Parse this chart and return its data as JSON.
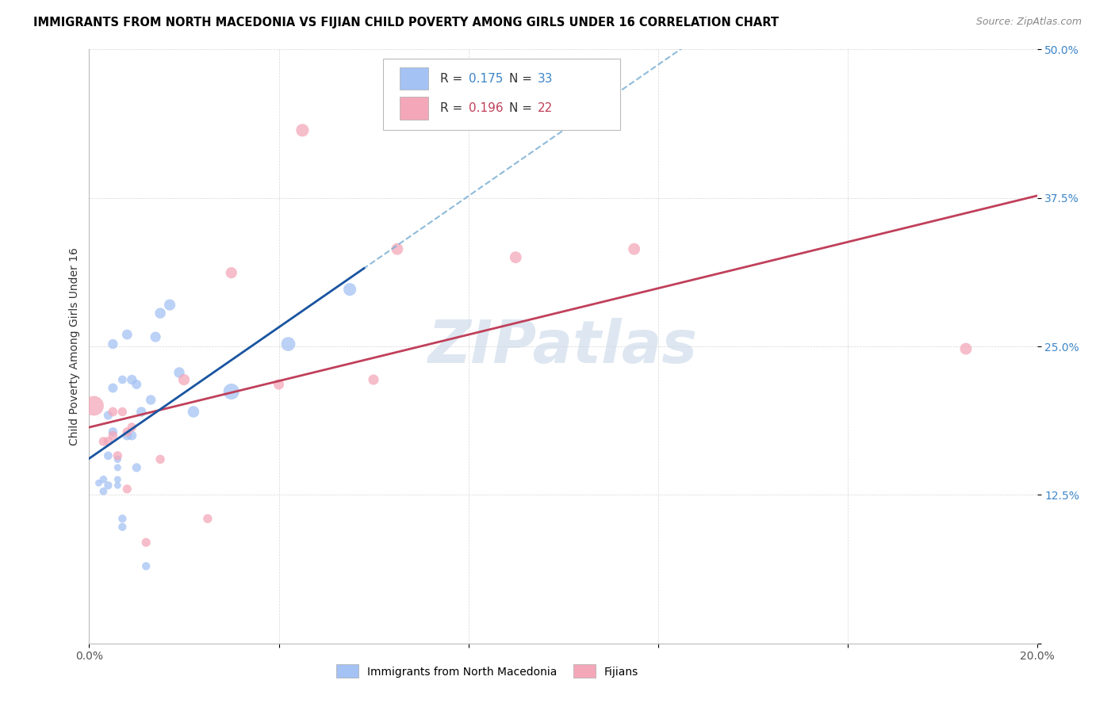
{
  "title": "IMMIGRANTS FROM NORTH MACEDONIA VS FIJIAN CHILD POVERTY AMONG GIRLS UNDER 16 CORRELATION CHART",
  "source": "Source: ZipAtlas.com",
  "ylabel": "Child Poverty Among Girls Under 16",
  "xlim": [
    0.0,
    0.2
  ],
  "ylim": [
    0.0,
    0.5
  ],
  "xticks": [
    0.0,
    0.04,
    0.08,
    0.12,
    0.16,
    0.2
  ],
  "xticklabels": [
    "0.0%",
    "",
    "",
    "",
    "",
    "20.0%"
  ],
  "yticks": [
    0.0,
    0.125,
    0.25,
    0.375,
    0.5
  ],
  "yticklabels": [
    "",
    "12.5%",
    "25.0%",
    "37.5%",
    "50.0%"
  ],
  "legend1_label": "Immigrants from North Macedonia",
  "legend2_label": "Fijians",
  "R1": 0.175,
  "N1": 33,
  "R2": 0.196,
  "N2": 22,
  "blue_color": "#a4c2f4",
  "pink_color": "#f4a7b9",
  "blue_line_color": "#1a55a0",
  "pink_line_color": "#c0405a",
  "dashed_line_color": "#7bafd4",
  "watermark": "ZIPatlas",
  "blue_scatter_x": [
    0.002,
    0.003,
    0.003,
    0.004,
    0.004,
    0.004,
    0.005,
    0.005,
    0.005,
    0.006,
    0.006,
    0.006,
    0.006,
    0.007,
    0.007,
    0.007,
    0.008,
    0.008,
    0.009,
    0.009,
    0.01,
    0.01,
    0.011,
    0.012,
    0.013,
    0.014,
    0.015,
    0.017,
    0.019,
    0.022,
    0.03,
    0.042,
    0.055
  ],
  "blue_scatter_y": [
    0.135,
    0.138,
    0.128,
    0.133,
    0.158,
    0.192,
    0.178,
    0.215,
    0.252,
    0.133,
    0.148,
    0.155,
    0.138,
    0.098,
    0.105,
    0.222,
    0.175,
    0.26,
    0.175,
    0.222,
    0.148,
    0.218,
    0.195,
    0.065,
    0.205,
    0.258,
    0.278,
    0.285,
    0.228,
    0.195,
    0.212,
    0.252,
    0.298
  ],
  "pink_scatter_x": [
    0.001,
    0.003,
    0.004,
    0.005,
    0.005,
    0.006,
    0.007,
    0.008,
    0.008,
    0.009,
    0.012,
    0.015,
    0.02,
    0.025,
    0.03,
    0.04,
    0.045,
    0.06,
    0.065,
    0.09,
    0.115,
    0.185
  ],
  "pink_scatter_y": [
    0.2,
    0.17,
    0.17,
    0.175,
    0.195,
    0.158,
    0.195,
    0.13,
    0.178,
    0.182,
    0.085,
    0.155,
    0.222,
    0.105,
    0.312,
    0.218,
    0.432,
    0.222,
    0.332,
    0.325,
    0.332,
    0.248
  ],
  "blue_sizes": [
    40,
    50,
    50,
    55,
    60,
    65,
    70,
    75,
    80,
    40,
    42,
    45,
    40,
    55,
    55,
    60,
    75,
    85,
    75,
    80,
    65,
    75,
    80,
    55,
    80,
    90,
    95,
    105,
    95,
    110,
    210,
    165,
    135
  ],
  "pink_sizes": [
    320,
    70,
    72,
    70,
    72,
    68,
    68,
    65,
    68,
    68,
    65,
    68,
    105,
    68,
    105,
    90,
    135,
    90,
    115,
    115,
    115,
    115
  ],
  "blue_line_x0": 0.0,
  "blue_line_x1": 0.055,
  "pink_line_x0": 0.0,
  "pink_line_x1": 0.2,
  "dashed_line_x0": 0.0,
  "dashed_line_x1": 0.2
}
